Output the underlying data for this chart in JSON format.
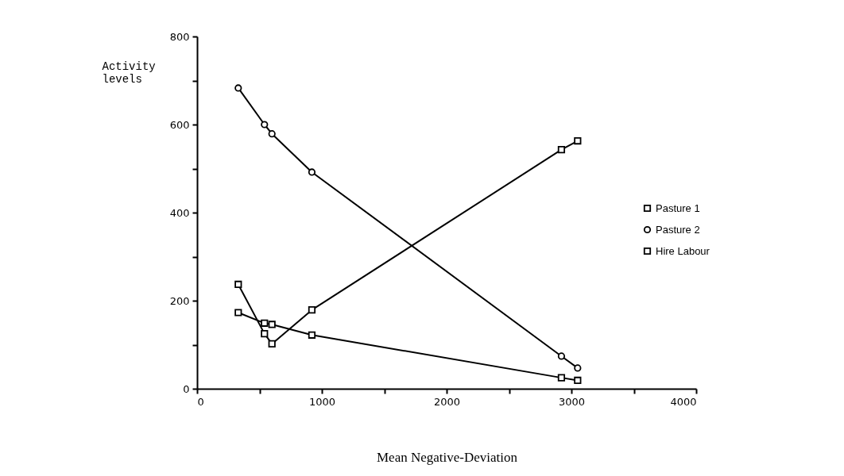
{
  "chart_data": {
    "type": "line",
    "xlabel": "Mean Negative-Deviation",
    "ylabel": "Activity levels",
    "x": [
      330,
      540,
      600,
      920,
      2920,
      3050
    ],
    "series": [
      {
        "name": "Pasture 1",
        "color": "#000000",
        "marker": "square",
        "values": [
          173,
          149,
          146,
          122,
          25,
          19
        ]
      },
      {
        "name": "Pasture 2",
        "color": "#000000",
        "marker": "circle",
        "values": [
          683,
          600,
          579,
          492,
          74,
          47
        ]
      },
      {
        "name": "Hire Labour",
        "color": "#000000",
        "marker": "square",
        "values": [
          237,
          125,
          102,
          179,
          543,
          563
        ]
      }
    ],
    "xlim": [
      0,
      4000
    ],
    "ylim": [
      0,
      800
    ],
    "xticks": [
      0,
      {
        "value": 500,
        "label": null
      },
      1000,
      {
        "value": 1500,
        "label": null
      },
      2000,
      {
        "value": 2500,
        "label": null
      },
      3000,
      {
        "value": 3500,
        "label": null
      },
      4000
    ],
    "yticks": [
      0,
      {
        "value": 100,
        "label": null
      },
      200,
      {
        "value": 300,
        "label": null
      },
      400,
      {
        "value": 500,
        "label": null
      },
      600,
      {
        "value": 700,
        "label": null
      },
      800
    ],
    "grid": false,
    "legend": "right",
    "line_style": "solid"
  }
}
